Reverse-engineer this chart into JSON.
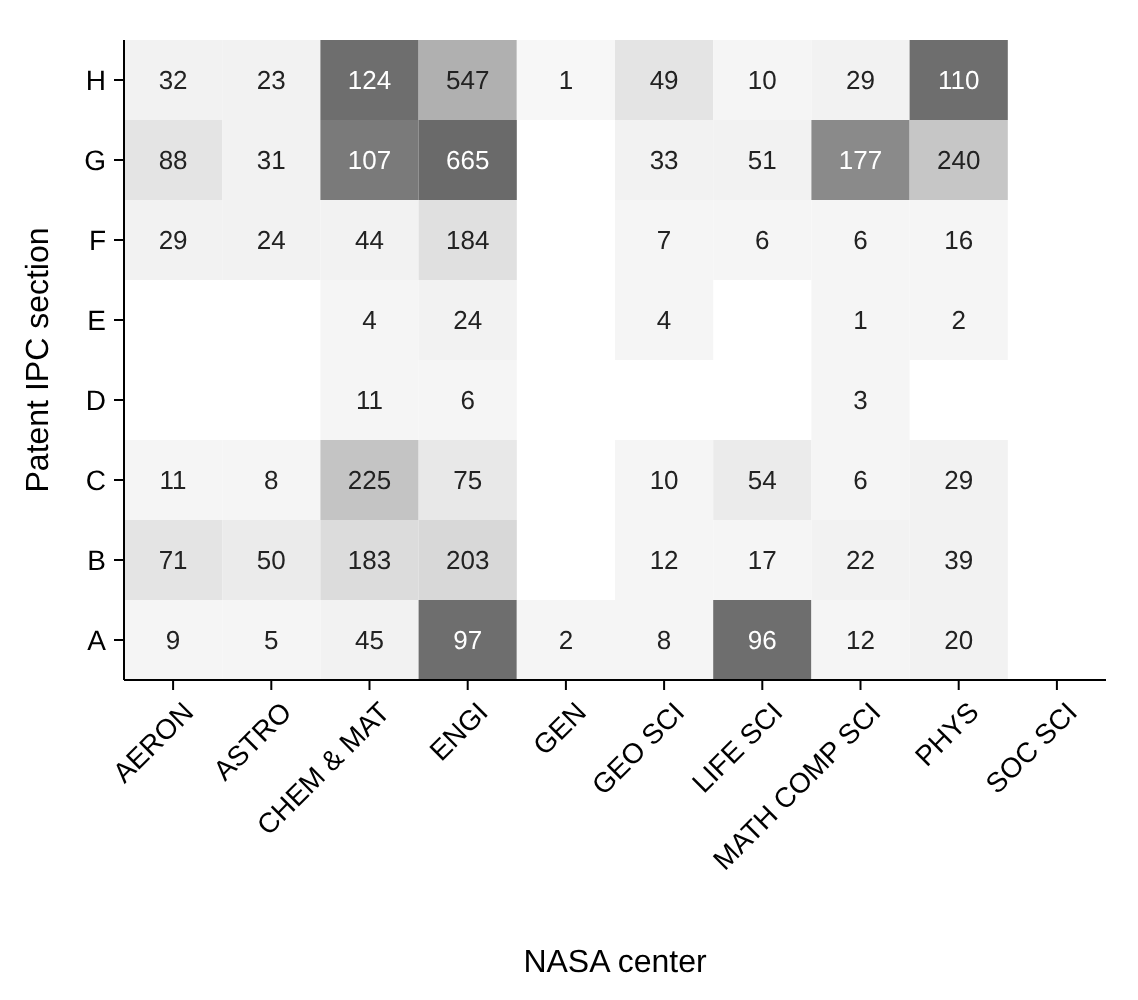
{
  "chart_data": {
    "type": "heatmap",
    "xlabel": "NASA center",
    "ylabel": "Patent IPC section",
    "categories": [
      "AERON",
      "ASTRO",
      "CHEM & MAT",
      "ENGI",
      "GEN",
      "GEO SCI",
      "LIFE SCI",
      "MATH COMP SCI",
      "PHYS",
      "SOC SCI"
    ],
    "y_categories": [
      "H",
      "G",
      "F",
      "E",
      "D",
      "C",
      "B",
      "A"
    ],
    "cells": [
      [
        32,
        23,
        124,
        547,
        1,
        49,
        10,
        29,
        110,
        null
      ],
      [
        88,
        31,
        107,
        665,
        null,
        33,
        51,
        177,
        240,
        null
      ],
      [
        29,
        24,
        44,
        184,
        null,
        7,
        6,
        6,
        16,
        null
      ],
      [
        null,
        null,
        4,
        24,
        null,
        4,
        null,
        1,
        2,
        null
      ],
      [
        null,
        null,
        11,
        6,
        null,
        null,
        null,
        3,
        null,
        null
      ],
      [
        11,
        8,
        225,
        75,
        null,
        10,
        54,
        6,
        29,
        null
      ],
      [
        71,
        50,
        183,
        203,
        null,
        12,
        17,
        22,
        39,
        null
      ],
      [
        9,
        5,
        45,
        97,
        2,
        8,
        96,
        12,
        20,
        null
      ]
    ],
    "colors": [
      [
        "#f2f2f2",
        "#f2f2f2",
        "#6e6e6e",
        "#b0b0b0",
        "#f7f7f7",
        "#e4e4e4",
        "#f5f5f5",
        "#f2f2f2",
        "#6e6e6e",
        null
      ],
      [
        "#e4e4e4",
        "#f2f2f2",
        "#7a7a7a",
        "#6a6a6a",
        null,
        "#f2f2f2",
        "#f2f2f2",
        "#8a8a8a",
        "#c6c6c6",
        null
      ],
      [
        "#f2f2f2",
        "#f2f2f2",
        "#f2f2f2",
        "#e0e0e0",
        null,
        "#f5f5f5",
        "#f5f5f5",
        "#f5f5f5",
        "#f5f5f5",
        null
      ],
      [
        null,
        null,
        "#f5f5f5",
        "#f2f2f2",
        null,
        "#f5f5f5",
        null,
        "#f5f5f5",
        "#f5f5f5",
        null
      ],
      [
        null,
        null,
        "#f5f5f5",
        "#f5f5f5",
        null,
        null,
        null,
        "#f5f5f5",
        null,
        null
      ],
      [
        "#f5f5f5",
        "#f5f5f5",
        "#c4c4c4",
        "#e8e8e8",
        null,
        "#f5f5f5",
        "#ebebeb",
        "#f5f5f5",
        "#f2f2f2",
        null
      ],
      [
        "#e4e4e4",
        "#ebebeb",
        "#dcdcdc",
        "#d8d8d8",
        null,
        "#f5f5f5",
        "#f5f5f5",
        "#f2f2f2",
        "#f2f2f2",
        null
      ],
      [
        "#f5f5f5",
        "#f5f5f5",
        "#f2f2f2",
        "#6e6e6e",
        "#f5f5f5",
        "#f5f5f5",
        "#6e6e6e",
        "#f5f5f5",
        "#f2f2f2",
        null
      ]
    ],
    "data_labels": true
  }
}
